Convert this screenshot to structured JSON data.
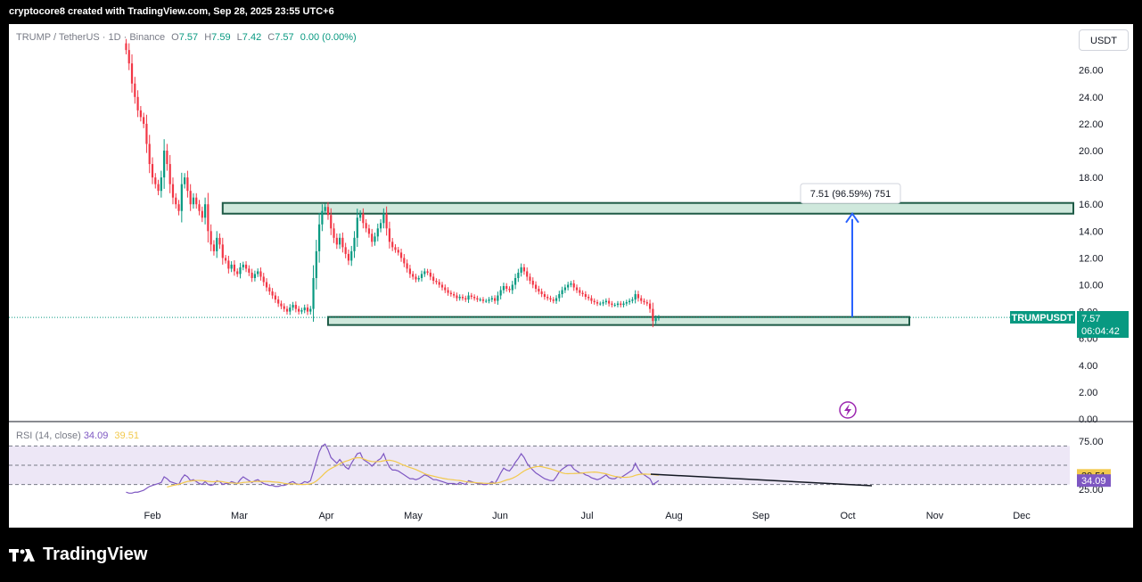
{
  "caption": "cryptocore8 created with TradingView.com, Sep 28, 2025 23:55 UTC+6",
  "branding": "TradingView",
  "currency_button": "USDT",
  "symbol_info": {
    "title": "TRUMP / TetherUS · 1D · Binance",
    "open_label": "O",
    "open": "7.57",
    "high_label": "H",
    "high": "7.59",
    "low_label": "L",
    "low": "7.42",
    "close_label": "C",
    "close": "7.57",
    "change": "0.00 (0.00%)"
  },
  "price_tag": {
    "symbol": "TRUMPUSDT",
    "price": "7.57",
    "countdown": "06:04:42"
  },
  "measure_label": "7.51 (96.59%) 751",
  "rsi_info": {
    "label": "RSI (14, close)",
    "rsi": "34.09",
    "ma": "39.51"
  },
  "colors": {
    "up": "#089981",
    "down": "#f23645",
    "zone_fill": "#cfe8dc",
    "zone_border": "#1e5a46",
    "rsi_line": "#7e57c2",
    "rsi_ma": "#f2c94c",
    "rsi_band": "#ede7f6",
    "measure": "#2962ff"
  },
  "chart_data": {
    "type": "candlestick",
    "title": "TRUMP / TetherUS · 1D · Binance",
    "price_axis": {
      "ticks": [
        "26.00",
        "24.00",
        "22.00",
        "20.00",
        "18.00",
        "16.00",
        "14.00",
        "12.00",
        "10.00",
        "8.00",
        "6.00",
        "4.00",
        "2.00",
        "0.00"
      ],
      "ylim": [
        0,
        28
      ]
    },
    "time_axis": {
      "ticks": [
        "Feb",
        "Mar",
        "Apr",
        "May",
        "Jun",
        "Jul",
        "Aug",
        "Sep",
        "Oct",
        "Nov",
        "Dec"
      ]
    },
    "close_series": {
      "start_date": "2025-01-23",
      "interval": "1D",
      "approx_close": [
        27.5,
        26.5,
        25,
        24,
        23,
        22.5,
        22,
        20.5,
        19,
        18,
        17.5,
        17,
        18,
        20,
        19,
        17.5,
        16.5,
        16,
        15.5,
        17.5,
        18,
        17,
        16,
        16.5,
        16,
        15.5,
        15,
        16,
        14,
        13,
        12.5,
        13.5,
        13,
        12,
        11.8,
        11.2,
        11.5,
        11,
        10.8,
        11.3,
        11.5,
        11.2,
        10.9,
        10.5,
        10.8,
        11,
        10.6,
        10.2,
        9.8,
        9.5,
        9.2,
        8.9,
        8.6,
        8.4,
        8.2,
        8.0,
        8.3,
        8.5,
        8.2,
        8.0,
        8.1,
        8.3,
        8.0,
        8.2,
        10.5,
        12.5,
        14.5,
        15.5,
        15.8,
        15.2,
        14.2,
        13.5,
        13,
        13.5,
        12.8,
        12.3,
        11.8,
        12.5,
        13.5,
        15,
        15.3,
        14.6,
        14.2,
        13.8,
        13.2,
        13.6,
        14.2,
        14.6,
        15.3,
        14.2,
        13.2,
        12.8,
        12.6,
        12.4,
        12.0,
        11.6,
        11.2,
        10.8,
        10.6,
        10.4,
        10.5,
        10.8,
        11.0,
        10.9,
        10.6,
        10.3,
        10.2,
        10.0,
        9.8,
        9.6,
        9.4,
        9.3,
        9.2,
        9.0,
        9.1,
        9.0,
        8.9,
        9.2,
        9.1,
        9.0,
        8.9,
        8.9,
        8.8,
        8.8,
        8.9,
        9.0,
        8.8,
        9.2,
        9.6,
        9.9,
        9.7,
        9.6,
        10.0,
        10.5,
        10.9,
        11.3,
        11.0,
        10.6,
        10.3,
        10.0,
        9.7,
        9.5,
        9.3,
        9.1,
        9.0,
        8.9,
        8.8,
        9.0,
        9.3,
        9.6,
        9.8,
        10.0,
        10.1,
        9.8,
        9.6,
        9.4,
        9.3,
        9.1,
        9.0,
        8.8,
        8.7,
        8.6,
        8.6,
        8.7,
        8.8,
        8.6,
        8.5,
        8.5,
        8.6,
        8.5,
        8.6,
        8.7,
        8.8,
        8.9,
        9.3,
        9.0,
        8.8,
        8.7,
        8.6,
        8.2,
        7.3,
        7.5,
        7.57
      ]
    },
    "zones": [
      {
        "name": "resistance",
        "low": 15.3,
        "high": 16.1
      },
      {
        "name": "support",
        "low": 7.0,
        "high": 7.6
      }
    ],
    "measure": {
      "from": 7.6,
      "to": 15.3,
      "text": "7.51 (96.59%) 751"
    },
    "rsi": {
      "label": "RSI (14, close)",
      "ticks": [
        "75.00",
        "25.00"
      ],
      "levels": [
        70,
        50,
        30
      ],
      "last_rsi": 34.09,
      "last_ma": 39.51,
      "approx_values": [
        22,
        21,
        21,
        22,
        22,
        23,
        24,
        26,
        28,
        29,
        30,
        31,
        32,
        38,
        36,
        33,
        32,
        31,
        30,
        36,
        40,
        38,
        34,
        35,
        33,
        31,
        30,
        33,
        30,
        29,
        30,
        34,
        33,
        30,
        31,
        31,
        33,
        32,
        31,
        35,
        38,
        36,
        34,
        32,
        34,
        35,
        33,
        31,
        30,
        29,
        29,
        28,
        28,
        29,
        29,
        30,
        32,
        33,
        31,
        30,
        31,
        33,
        32,
        34,
        44,
        54,
        64,
        70,
        72,
        66,
        58,
        55,
        52,
        56,
        52,
        48,
        46,
        52,
        57,
        62,
        63,
        56,
        54,
        52,
        49,
        52,
        55,
        57,
        62,
        54,
        48,
        45,
        45,
        44,
        42,
        40,
        38,
        36,
        36,
        35,
        36,
        38,
        40,
        39,
        37,
        35,
        35,
        34,
        33,
        32,
        31,
        31,
        31,
        30,
        32,
        31,
        30,
        34,
        33,
        32,
        31,
        31,
        30,
        30,
        31,
        33,
        31,
        36,
        42,
        47,
        45,
        44,
        48,
        53,
        57,
        62,
        58,
        52,
        48,
        45,
        42,
        40,
        38,
        36,
        35,
        34,
        34,
        38,
        43,
        46,
        48,
        50,
        50,
        46,
        44,
        42,
        42,
        40,
        39,
        37,
        36,
        35,
        36,
        38,
        40,
        37,
        36,
        36,
        38,
        37,
        39,
        41,
        43,
        45,
        52,
        46,
        42,
        40,
        38,
        36,
        30,
        32,
        34.09
      ]
    }
  }
}
